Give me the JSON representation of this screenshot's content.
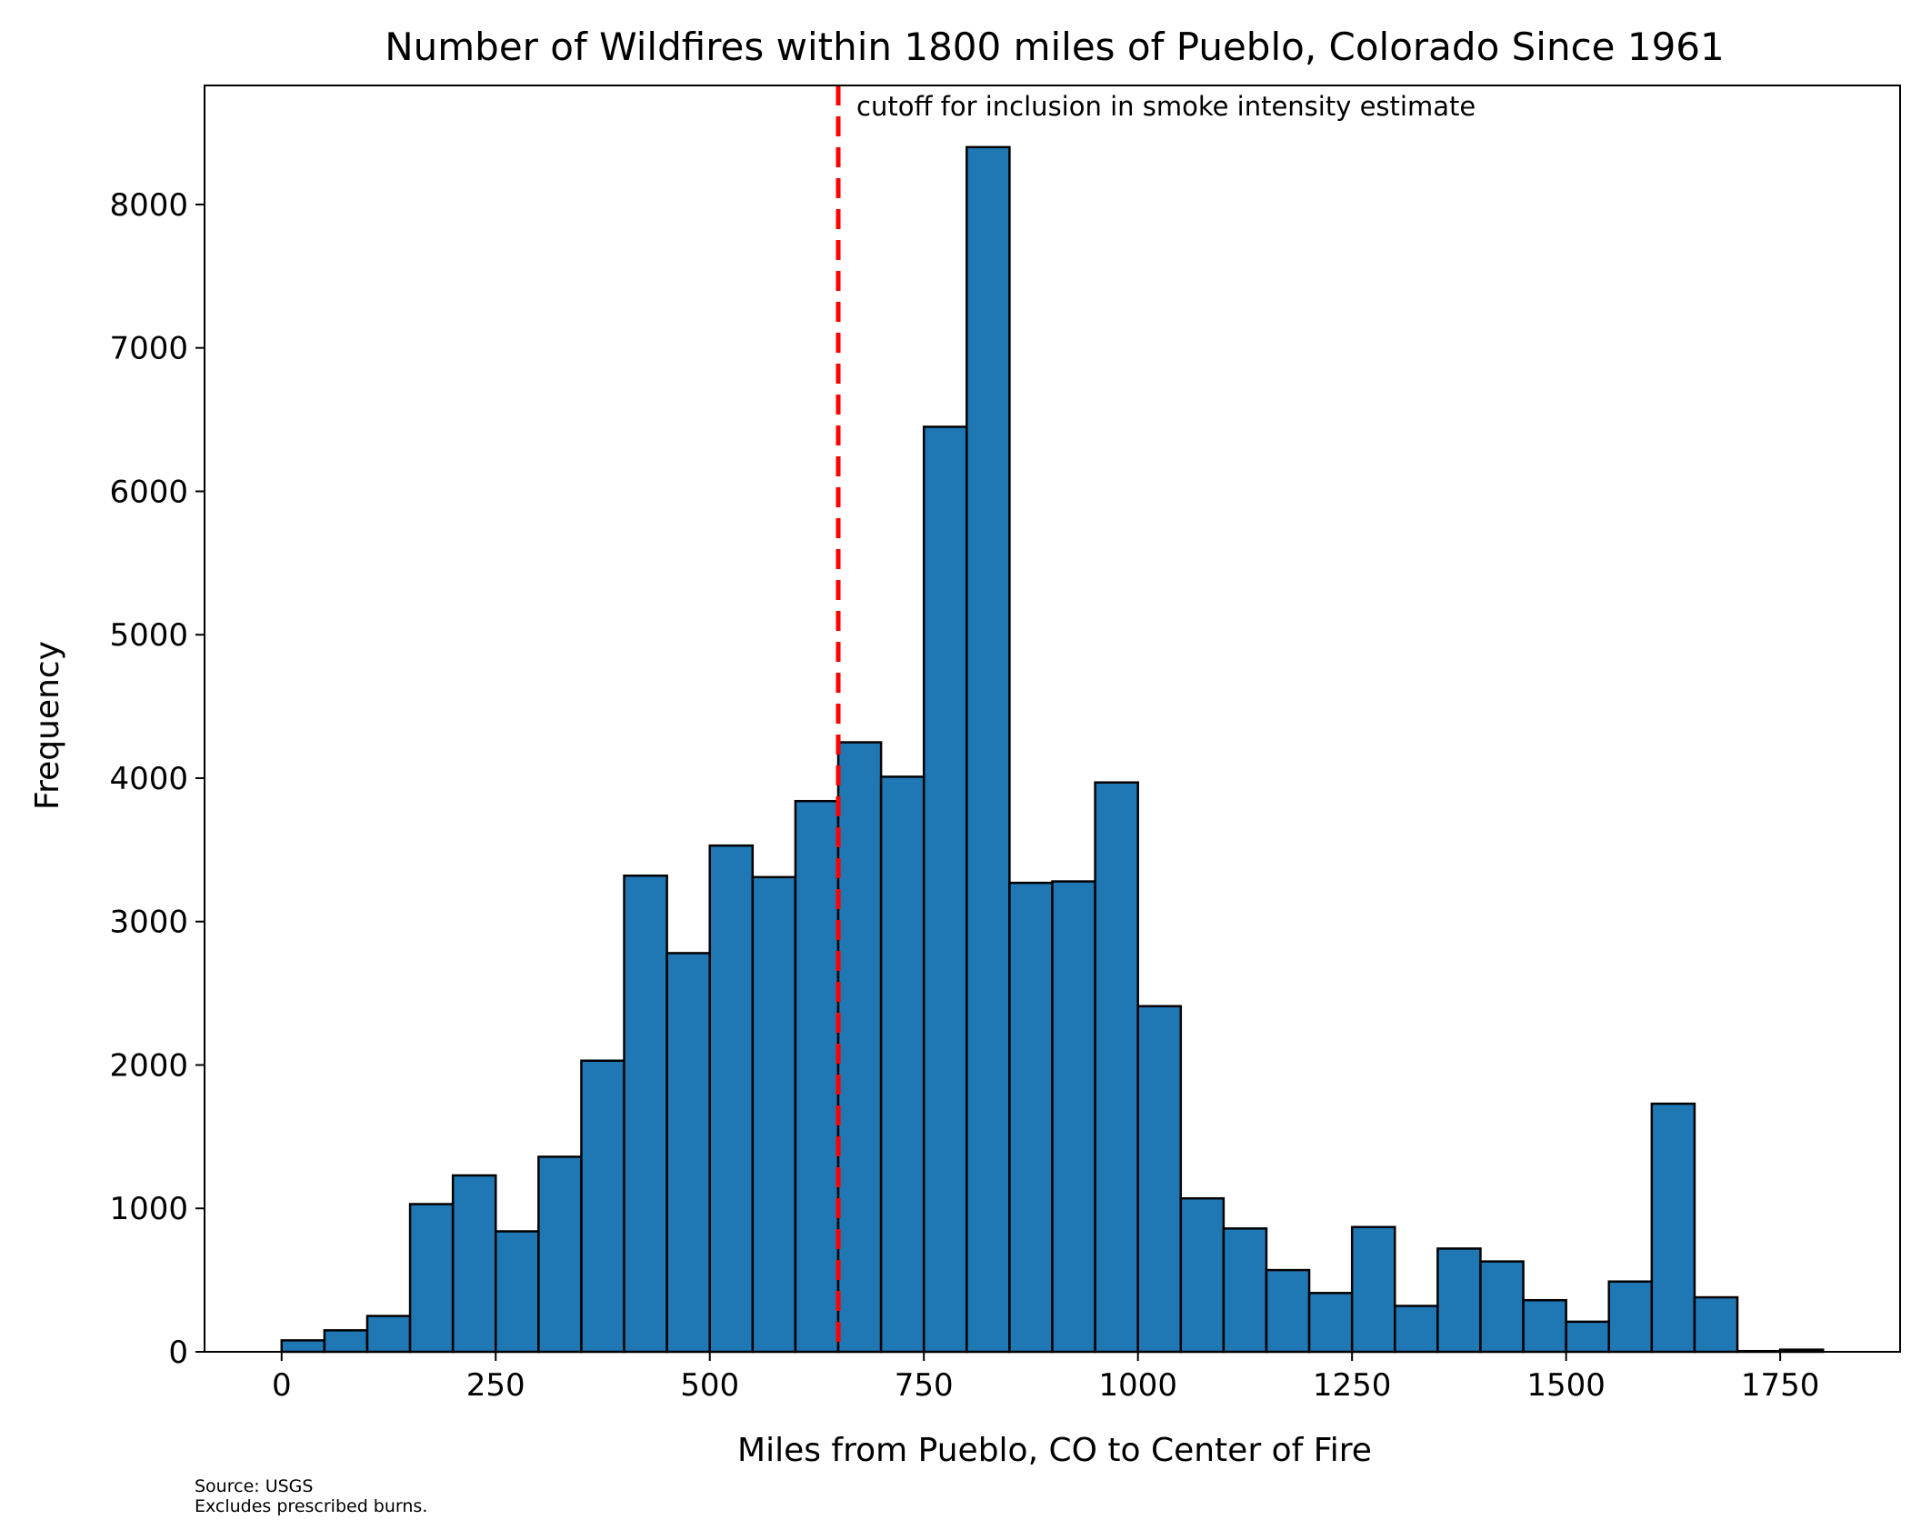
{
  "chart_data": {
    "type": "bar",
    "title": "Number of Wildfires within 1800 miles of Pueblo, Colorado Since 1961",
    "xlabel": "Miles from Pueblo, CO to Center of Fire",
    "ylabel": "Frequency",
    "xlim": [
      -90,
      1890
    ],
    "ylim": [
      0,
      8830
    ],
    "xticks": [
      0,
      250,
      500,
      750,
      1000,
      1250,
      1500,
      1750
    ],
    "yticks": [
      0,
      1000,
      2000,
      3000,
      4000,
      5000,
      6000,
      7000,
      8000
    ],
    "bin_width": 50,
    "bins": [
      {
        "start": 0,
        "value": 80
      },
      {
        "start": 50,
        "value": 150
      },
      {
        "start": 100,
        "value": 250
      },
      {
        "start": 150,
        "value": 1030
      },
      {
        "start": 200,
        "value": 1230
      },
      {
        "start": 250,
        "value": 840
      },
      {
        "start": 300,
        "value": 1360
      },
      {
        "start": 350,
        "value": 2030
      },
      {
        "start": 400,
        "value": 3320
      },
      {
        "start": 450,
        "value": 2780
      },
      {
        "start": 500,
        "value": 3530
      },
      {
        "start": 550,
        "value": 3310
      },
      {
        "start": 600,
        "value": 3840
      },
      {
        "start": 650,
        "value": 4250
      },
      {
        "start": 700,
        "value": 4010
      },
      {
        "start": 750,
        "value": 6450
      },
      {
        "start": 800,
        "value": 8400
      },
      {
        "start": 850,
        "value": 3270
      },
      {
        "start": 900,
        "value": 3280
      },
      {
        "start": 950,
        "value": 3970
      },
      {
        "start": 1000,
        "value": 2410
      },
      {
        "start": 1050,
        "value": 1070
      },
      {
        "start": 1100,
        "value": 860
      },
      {
        "start": 1150,
        "value": 570
      },
      {
        "start": 1200,
        "value": 410
      },
      {
        "start": 1250,
        "value": 870
      },
      {
        "start": 1300,
        "value": 320
      },
      {
        "start": 1350,
        "value": 720
      },
      {
        "start": 1400,
        "value": 630
      },
      {
        "start": 1450,
        "value": 360
      },
      {
        "start": 1500,
        "value": 210
      },
      {
        "start": 1550,
        "value": 490
      },
      {
        "start": 1600,
        "value": 1730
      },
      {
        "start": 1650,
        "value": 380
      },
      {
        "start": 1700,
        "value": 5
      },
      {
        "start": 1750,
        "value": 15
      }
    ],
    "cutoff": {
      "x": 650,
      "label": "cutoff for inclusion in smoke intensity estimate",
      "color": "#ff0000"
    },
    "bar_color": "#1f77b4",
    "edge_color": "#000000",
    "grid": false,
    "legend": "none"
  },
  "footer": {
    "source": "Source: USGS",
    "note": "Excludes prescribed burns."
  }
}
